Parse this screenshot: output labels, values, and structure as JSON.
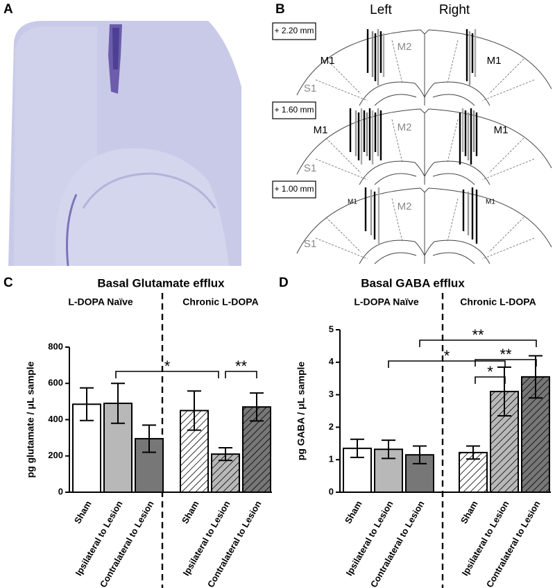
{
  "panels": [
    "A",
    "B",
    "C",
    "D"
  ],
  "panel_b": {
    "left": "Left",
    "right": "Right",
    "sections": [
      {
        "level": "+ 2.20 mm",
        "labels": [
          "M1",
          "M2",
          "S1",
          "M1"
        ]
      },
      {
        "level": "+ 1.60 mm",
        "labels": [
          "M1",
          "M2",
          "S1",
          "M1"
        ]
      },
      {
        "level": "+ 1.00 mm",
        "labels": [
          "M1",
          "M2",
          "S1",
          "M1"
        ]
      }
    ]
  },
  "chart_data": [
    {
      "type": "bar",
      "title": "Basal Glutamate efflux",
      "ylabel": "pg glutamate / μL sample",
      "groups": [
        "L-DOPA Naïve",
        "Chronic L-DOPA"
      ],
      "categories": [
        "Sham",
        "Ipsilateral to Lesion",
        "Contralateral to Lesion",
        "Sham",
        "Ipsilateral to Lesion",
        "Contralateral to Lesion"
      ],
      "values": [
        485,
        490,
        295,
        450,
        210,
        470
      ],
      "errors": [
        90,
        110,
        75,
        108,
        35,
        77
      ],
      "colors": [
        "#ffffff",
        "#b8b8b8",
        "#777777",
        "#ffffff",
        "#b8b8b8",
        "#777777"
      ],
      "hatched": [
        false,
        false,
        false,
        true,
        true,
        true
      ],
      "annotations": [
        "*",
        "**"
      ],
      "ylim": [
        0,
        800
      ],
      "yticks": [
        0,
        200,
        400,
        600,
        800
      ]
    },
    {
      "type": "bar",
      "title": "Basal GABA efflux",
      "ylabel": "pg GABA / μL sample",
      "groups": [
        "L-DOPA Naïve",
        "Chronic L-DOPA"
      ],
      "categories": [
        "Sham",
        "Ipsilateral to Lesion",
        "Contralateral to Lesion",
        "Sham",
        "Ipsilateral to Lesion",
        "Contralateral to Lesion"
      ],
      "values": [
        1.35,
        1.32,
        1.15,
        1.22,
        3.1,
        3.55
      ],
      "errors": [
        0.28,
        0.28,
        0.27,
        0.2,
        0.75,
        0.65
      ],
      "colors": [
        "#ffffff",
        "#b8b8b8",
        "#777777",
        "#ffffff",
        "#b8b8b8",
        "#777777"
      ],
      "hatched": [
        false,
        false,
        false,
        true,
        true,
        true
      ],
      "annotations": [
        "**",
        "**",
        "*",
        "*"
      ],
      "ylim": [
        0,
        5
      ],
      "yticks": [
        0,
        1,
        2,
        3,
        4,
        5
      ]
    }
  ]
}
